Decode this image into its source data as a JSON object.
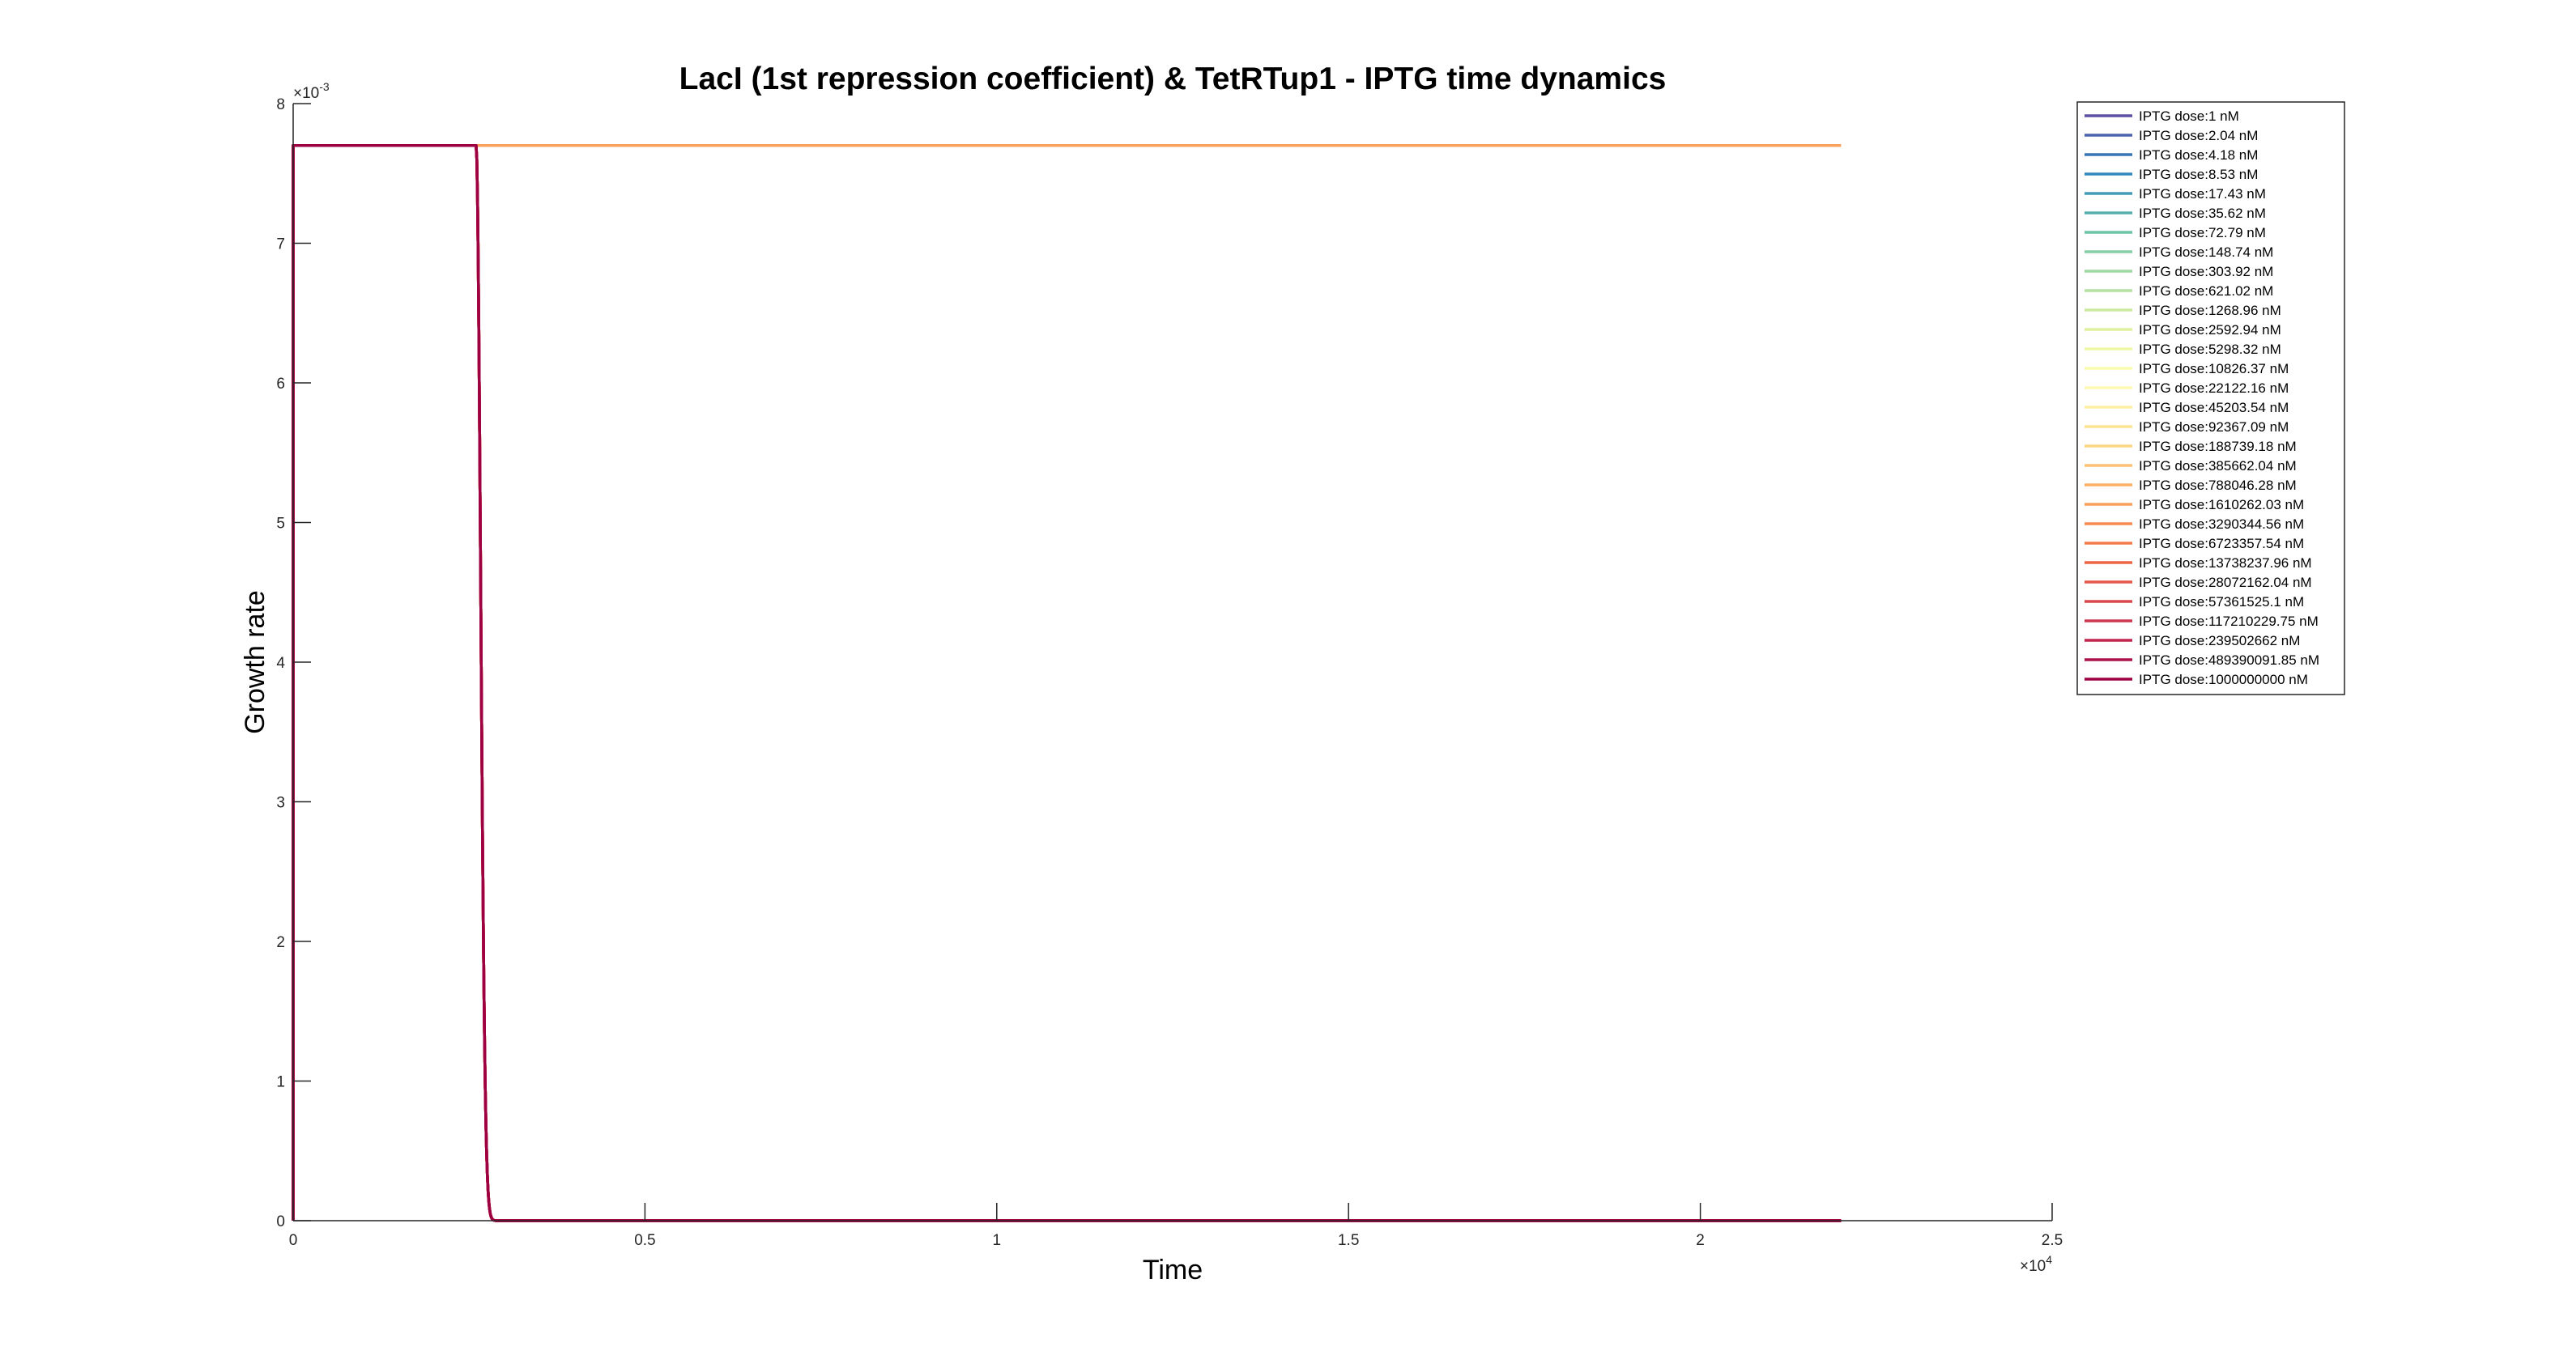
{
  "chart_data": {
    "type": "line",
    "title": "LacI (1st repression coefficient) & TetRTup1 - IPTG time dynamics",
    "xlabel": "Time",
    "ylabel": "Growth rate",
    "x_exponent": {
      "base": "×10",
      "power": "4"
    },
    "y_exponent": {
      "base": "×10",
      "power": "-3"
    },
    "xlim": [
      0,
      25000
    ],
    "ylim": [
      0,
      0.008
    ],
    "xticks": [
      0,
      5000,
      10000,
      15000,
      20000,
      25000
    ],
    "xtick_labels": [
      "0",
      "0.5",
      "1",
      "1.5",
      "2",
      "2.5"
    ],
    "yticks": [
      0,
      0.001,
      0.002,
      0.003,
      0.004,
      0.005,
      0.006,
      0.007,
      0.008
    ],
    "ytick_labels": [
      "0",
      "1",
      "2",
      "3",
      "4",
      "5",
      "6",
      "7",
      "8"
    ],
    "grid": false,
    "legend_position": "outside-top-right",
    "plateau": 0.0077,
    "x_end": 22000,
    "response": {
      "collapse_start": 2600,
      "tau": 90,
      "curve_x": [
        0,
        2600,
        2650,
        2700,
        2750,
        2800,
        2900,
        3000,
        3200,
        3500,
        4000,
        22000
      ]
    },
    "series": [
      {
        "name": "IPTG dose:1 nM",
        "color": "#5E4FA2",
        "behavior": "drop"
      },
      {
        "name": "IPTG dose:2.04 nM",
        "color": "#4A62AB",
        "behavior": "drop"
      },
      {
        "name": "IPTG dose:4.18 nM",
        "color": "#3775B5",
        "behavior": "drop"
      },
      {
        "name": "IPTG dose:8.53 nM",
        "color": "#3288BD",
        "behavior": "drop"
      },
      {
        "name": "IPTG dose:17.43 nM",
        "color": "#439BB5",
        "behavior": "drop"
      },
      {
        "name": "IPTG dose:35.62 nM",
        "color": "#57AFAD",
        "behavior": "drop"
      },
      {
        "name": "IPTG dose:72.79 nM",
        "color": "#6CC3A5",
        "behavior": "drop"
      },
      {
        "name": "IPTG dose:148.74 nM",
        "color": "#85CFA5",
        "behavior": "drop"
      },
      {
        "name": "IPTG dose:303.92 nM",
        "color": "#9ED9A4",
        "behavior": "drop"
      },
      {
        "name": "IPTG dose:621.02 nM",
        "color": "#B5E1A1",
        "behavior": "drop"
      },
      {
        "name": "IPTG dose:1268.96 nM",
        "color": "#CBEA9F",
        "behavior": "drop"
      },
      {
        "name": "IPTG dose:2592.94 nM",
        "color": "#DDF1A0",
        "behavior": "drop"
      },
      {
        "name": "IPTG dose:5298.32 nM",
        "color": "#EEF8A6",
        "behavior": "drop"
      },
      {
        "name": "IPTG dose:10826.37 nM",
        "color": "#F8FBB0",
        "behavior": "drop"
      },
      {
        "name": "IPTG dose:22122.16 nM",
        "color": "#FDF8B4",
        "behavior": "drop"
      },
      {
        "name": "IPTG dose:45203.54 nM",
        "color": "#FEEFA4",
        "behavior": "drop"
      },
      {
        "name": "IPTG dose:92367.09 nM",
        "color": "#FEE391",
        "behavior": "drop"
      },
      {
        "name": "IPTG dose:188739.18 nM",
        "color": "#FED583",
        "behavior": "drop"
      },
      {
        "name": "IPTG dose:385662.04 nM",
        "color": "#FDC374",
        "behavior": "drop"
      },
      {
        "name": "IPTG dose:788046.28 nM",
        "color": "#FDB063",
        "behavior": "drop"
      },
      {
        "name": "IPTG dose:1610262.03 nM",
        "color": "#FBA05B",
        "behavior": "flat"
      },
      {
        "name": "IPTG dose:3290344.56 nM",
        "color": "#F88B51",
        "behavior": "drop"
      },
      {
        "name": "IPTG dose:6723357.54 nM",
        "color": "#F57A49",
        "behavior": "drop"
      },
      {
        "name": "IPTG dose:13738237.96 nM",
        "color": "#EE6545",
        "behavior": "drop"
      },
      {
        "name": "IPTG dose:28072162.04 nM",
        "color": "#E55748",
        "behavior": "drop"
      },
      {
        "name": "IPTG dose:57361525.1 nM",
        "color": "#DB484B",
        "behavior": "drop"
      },
      {
        "name": "IPTG dose:117210229.75 nM",
        "color": "#CF3650",
        "behavior": "drop"
      },
      {
        "name": "IPTG dose:239502662 nM",
        "color": "#C2244E",
        "behavior": "drop"
      },
      {
        "name": "IPTG dose:489390091.85 nM",
        "color": "#AD1149",
        "behavior": "drop"
      },
      {
        "name": "IPTG dose:1000000000 nM",
        "color": "#9E0142",
        "behavior": "drop"
      }
    ]
  }
}
